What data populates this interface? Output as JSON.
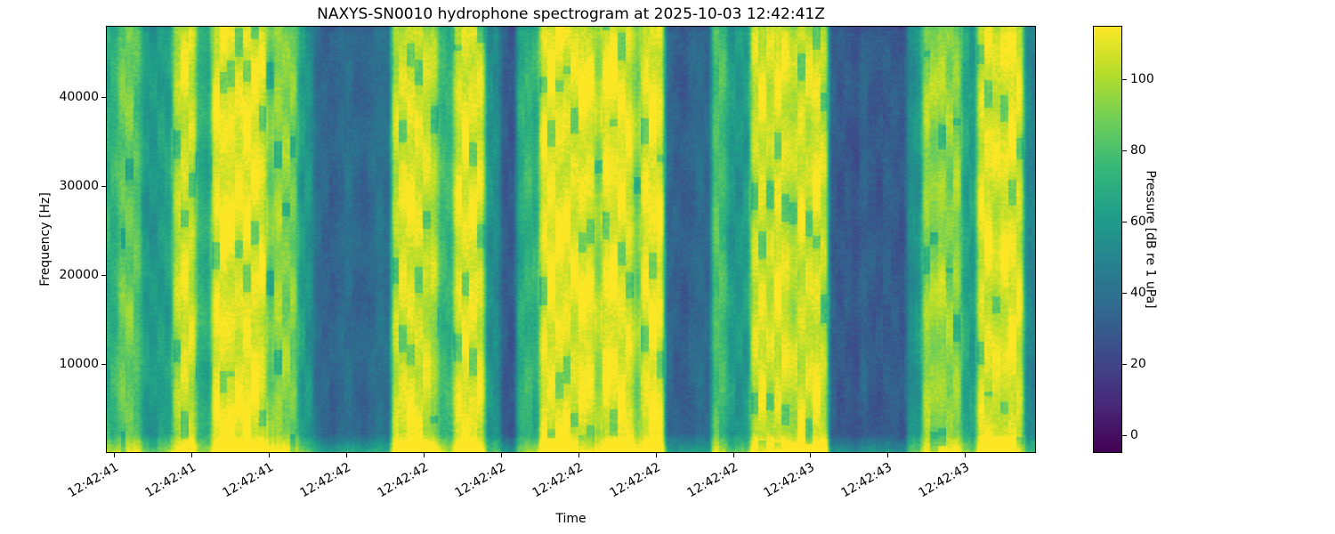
{
  "chart_data": {
    "type": "heatmap",
    "title": "NAXYS-SN0010 hydrophone spectrogram at 2025-10-03 12:42:41Z",
    "xlabel": "Time",
    "ylabel": "Frequency [Hz]",
    "x_tick_labels": [
      "12:42:41",
      "12:42:41",
      "12:42:41",
      "12:42:42",
      "12:42:42",
      "12:42:42",
      "12:42:42",
      "12:42:42",
      "12:42:42",
      "12:42:43",
      "12:42:43",
      "12:42:43"
    ],
    "y_tick_values": [
      10000,
      20000,
      30000,
      40000
    ],
    "y_tick_labels": [
      "10000",
      "20000",
      "30000",
      "40000"
    ],
    "freq_range_hz": [
      0,
      48000
    ],
    "grid": false,
    "colorbar": {
      "label": "Pressure [dB re 1 uPa]",
      "tick_values": [
        0,
        20,
        40,
        60,
        80,
        100
      ],
      "tick_labels": [
        "0",
        "20",
        "40",
        "60",
        "80",
        "100"
      ],
      "value_range_db": [
        -5,
        115
      ],
      "colormap": "viridis",
      "colormap_stops": [
        "#440154",
        "#482878",
        "#3e4989",
        "#31688e",
        "#26828e",
        "#1f9e89",
        "#35b779",
        "#6ece58",
        "#b5de2b",
        "#fde725"
      ],
      "position": "right"
    },
    "time_profile_db": [
      70,
      72,
      86,
      88,
      82,
      60,
      58,
      62,
      64,
      100,
      108,
      104,
      72,
      68,
      110,
      112,
      111,
      108,
      112,
      110,
      109,
      86,
      96,
      92,
      90,
      62,
      58,
      38,
      34,
      32,
      36,
      40,
      35,
      33,
      37,
      42,
      38,
      102,
      108,
      110,
      106,
      104,
      100,
      76,
      74,
      108,
      110,
      109,
      107,
      56,
      54,
      30,
      28,
      68,
      74,
      70,
      110,
      112,
      111,
      110,
      108,
      112,
      110,
      95,
      111,
      112,
      110,
      108,
      90,
      110,
      112,
      111,
      36,
      32,
      30,
      34,
      38,
      35,
      82,
      78,
      60,
      58,
      62,
      104,
      108,
      102,
      110,
      106,
      100,
      108,
      104,
      110,
      102,
      32,
      28,
      30,
      26,
      34,
      30,
      28,
      32,
      30,
      28,
      54,
      58,
      96,
      94,
      98,
      92,
      95,
      66,
      62,
      108,
      110,
      106,
      109,
      111,
      107,
      52,
      48
    ],
    "data_encoding": "time_profile_db is the broadband pressure level (dB re 1 uPa) of each of 120 time slices left-to-right; bright yellow vertical bands are high-level events, dark blue bands are quiet intervals"
  }
}
